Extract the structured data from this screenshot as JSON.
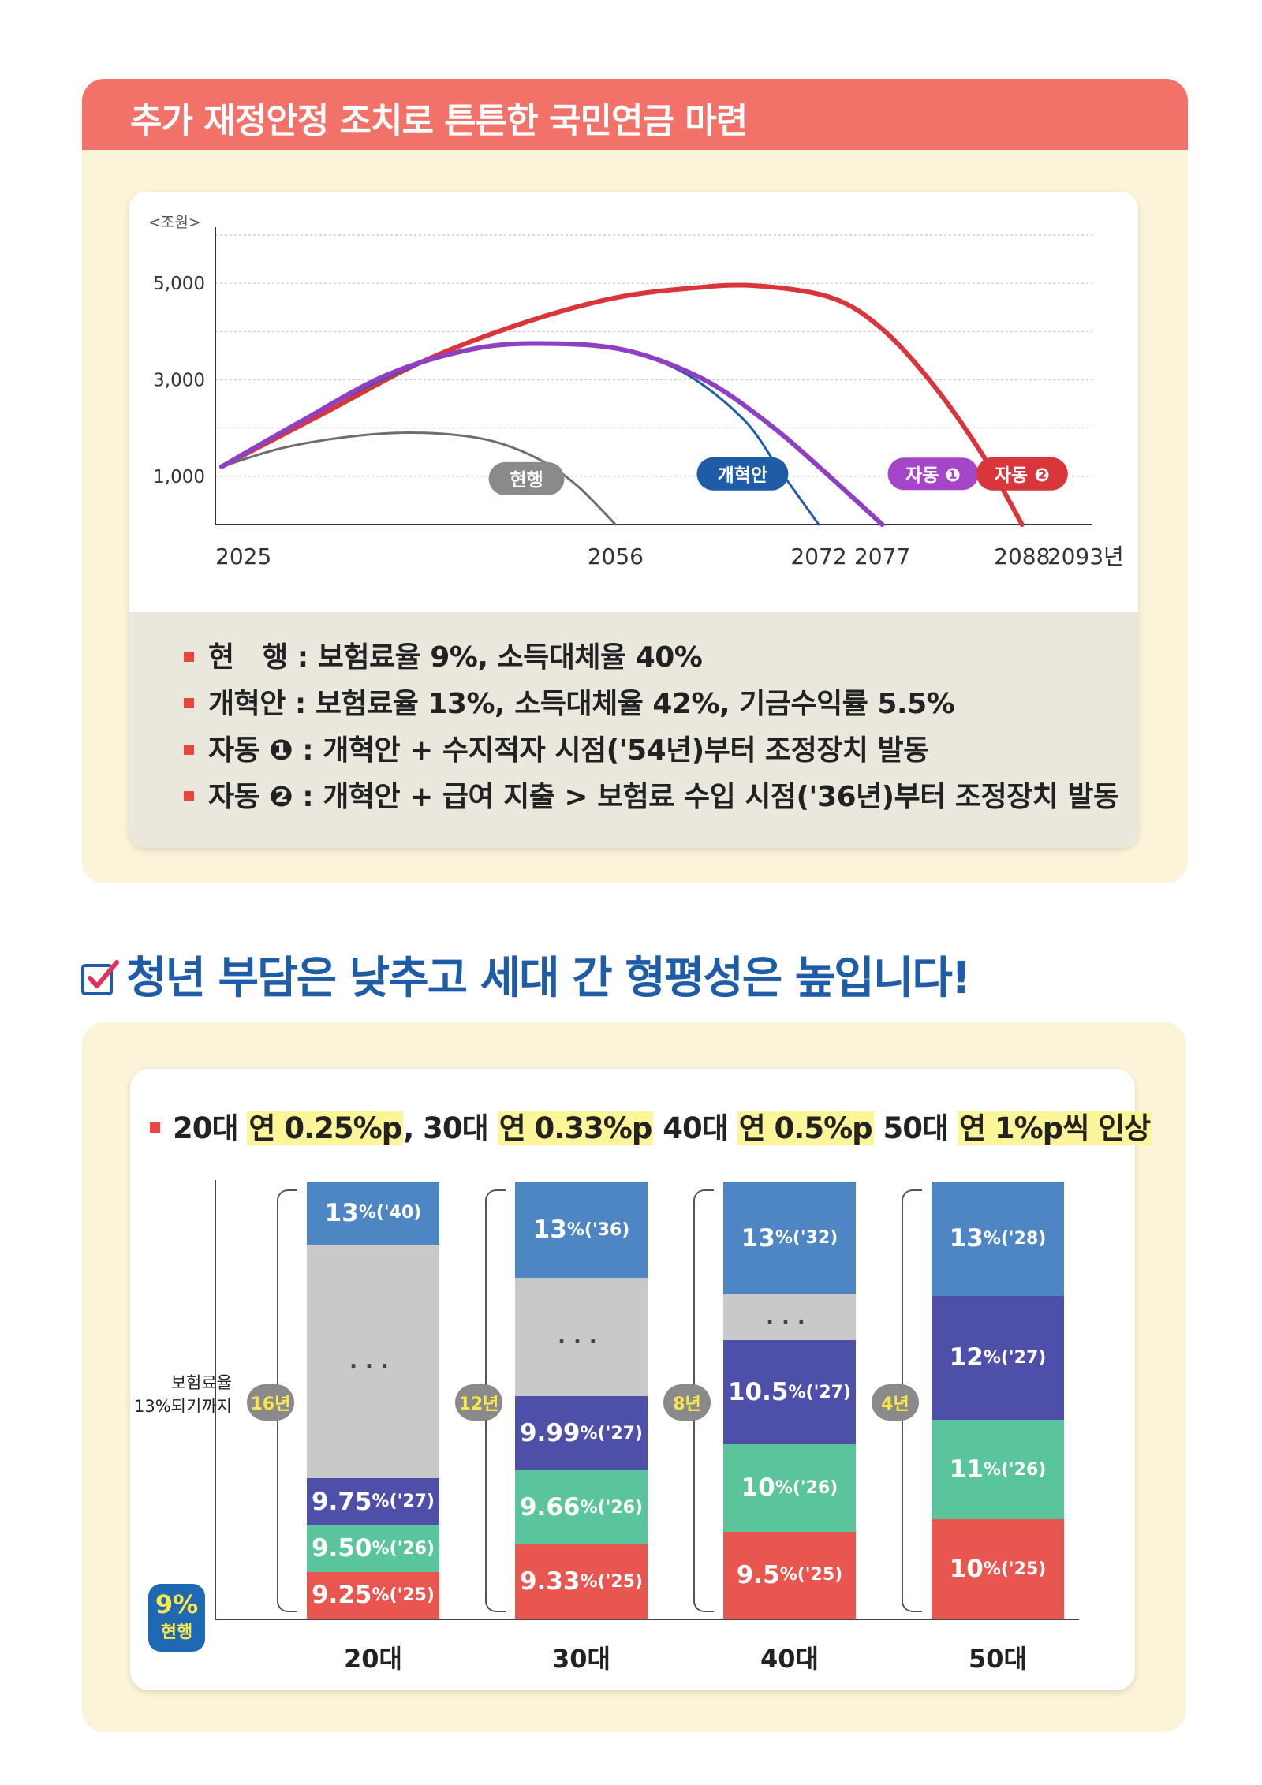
{
  "section1": {
    "title": "추가 재정안정 조치로 튼튼한 국민연금 마련"
  },
  "chart_data": [
    {
      "type": "line",
      "title": "추가 재정안정 조치로 튼튼한 국민연금 마련",
      "ylabel": "<조원>",
      "ylim": [
        0,
        6000
      ],
      "yticks": [
        1000,
        3000,
        5000
      ],
      "ytick_labels": [
        "1,000",
        "3,000",
        "5,000"
      ],
      "xlim": [
        2025,
        2093
      ],
      "xtick_values": [
        2025,
        2056,
        2072,
        2077,
        2088,
        2093
      ],
      "xtick_labels": [
        "2025",
        "2056",
        "2072",
        "2077",
        "2088",
        "2093년"
      ],
      "grid": true,
      "series": [
        {
          "name": "현행",
          "color": "#6e6e6e",
          "badge_color": "#8a8a8a",
          "label_x": 2049,
          "label_y": 950,
          "x": [
            2025,
            2030,
            2036,
            2041,
            2046,
            2050,
            2053,
            2056
          ],
          "y": [
            1200,
            1600,
            1850,
            1900,
            1750,
            1350,
            800,
            0
          ]
        },
        {
          "name": "개혁안",
          "color": "#1f5ca8",
          "badge_color": "#1f5ca8",
          "label_x": 2066,
          "label_y": 1050,
          "x": [
            2025,
            2031,
            2038,
            2044,
            2050,
            2055,
            2061,
            2066,
            2069,
            2072
          ],
          "y": [
            1200,
            2100,
            3050,
            3600,
            3750,
            3700,
            3200,
            2200,
            1100,
            0
          ]
        },
        {
          "name": "자동 ❶",
          "color": "#8e3fc2",
          "badge_color": "#a546c9",
          "label_x": 2081,
          "label_y": 1050,
          "x": [
            2025,
            2031,
            2038,
            2045,
            2051,
            2057,
            2063,
            2068,
            2072,
            2077
          ],
          "y": [
            1200,
            2100,
            3100,
            3650,
            3750,
            3600,
            3000,
            2100,
            1200,
            0
          ]
        },
        {
          "name": "자동 ❷",
          "color": "#d8363a",
          "badge_color": "#d8363a",
          "label_x": 2088,
          "label_y": 1050,
          "x": [
            2025,
            2033,
            2041,
            2049,
            2056,
            2062,
            2067,
            2073,
            2077,
            2081,
            2085,
            2088
          ],
          "y": [
            1200,
            2300,
            3400,
            4200,
            4700,
            4900,
            4950,
            4700,
            4050,
            2900,
            1400,
            0
          ]
        }
      ]
    },
    {
      "type": "bar",
      "stacked": true,
      "title": "20대 연 0.25%p, 30대 연 0.33%p 40대 연 0.5%p 50대 연 1%p씩 인상",
      "categories": [
        "20대",
        "30대",
        "40대",
        "50대"
      ],
      "baseline_label": "9%",
      "baseline_sub": "현행",
      "reach_label_line1": "보험료율",
      "reach_label_line2": "13%되기까지",
      "years_to_13": [
        "16년",
        "12년",
        "8년",
        "4년"
      ],
      "stacks": [
        {
          "category": "20대",
          "segments": [
            {
              "label": "9.25",
              "unit": "%",
              "year": "('25)",
              "color": "#e8564f",
              "weight": 1
            },
            {
              "label": "9.50",
              "unit": "%",
              "year": "('26)",
              "color": "#5ac59c",
              "weight": 1
            },
            {
              "label": "9.75",
              "unit": "%",
              "year": "('27)",
              "color": "#4e4fa8",
              "weight": 1
            },
            {
              "label": "...",
              "unit": "",
              "year": "",
              "color": "#c9c9c9",
              "weight": 5
            },
            {
              "label": "13",
              "unit": "%",
              "year": "('40)",
              "color": "#4e86c4",
              "weight": 1.35
            }
          ]
        },
        {
          "category": "30대",
          "segments": [
            {
              "label": "9.33",
              "unit": "%",
              "year": "('25)",
              "color": "#e8564f",
              "weight": 1
            },
            {
              "label": "9.66",
              "unit": "%",
              "year": "('26)",
              "color": "#5ac59c",
              "weight": 1
            },
            {
              "label": "9.99",
              "unit": "%",
              "year": "('27)",
              "color": "#4e4fa8",
              "weight": 1
            },
            {
              "label": "...",
              "unit": "",
              "year": "",
              "color": "#c9c9c9",
              "weight": 1.6
            },
            {
              "label": "13",
              "unit": "%",
              "year": "('36)",
              "color": "#4e86c4",
              "weight": 1.3
            }
          ]
        },
        {
          "category": "40대",
          "segments": [
            {
              "label": "9.5",
              "unit": "%",
              "year": "('25)",
              "color": "#e8564f",
              "weight": 1
            },
            {
              "label": "10",
              "unit": "%",
              "year": "('26)",
              "color": "#5ac59c",
              "weight": 1
            },
            {
              "label": "10.5",
              "unit": "%",
              "year": "('27)",
              "color": "#4e4fa8",
              "weight": 1.2
            },
            {
              "label": "...",
              "unit": "",
              "year": "",
              "color": "#c9c9c9",
              "weight": 0.52
            },
            {
              "label": "13",
              "unit": "%",
              "year": "('32)",
              "color": "#4e86c4",
              "weight": 1.3
            }
          ]
        },
        {
          "category": "50대",
          "segments": [
            {
              "label": "10",
              "unit": "%",
              "year": "('25)",
              "color": "#e8564f",
              "weight": 1
            },
            {
              "label": "11",
              "unit": "%",
              "year": "('26)",
              "color": "#5ac59c",
              "weight": 1
            },
            {
              "label": "12",
              "unit": "%",
              "year": "('27)",
              "color": "#4e4fa8",
              "weight": 1.25
            },
            {
              "label": "13",
              "unit": "%",
              "year": "('28)",
              "color": "#4e86c4",
              "weight": 1.15
            }
          ]
        }
      ]
    }
  ],
  "legend": [
    {
      "name": "현　행",
      "desc": ": 보험료율 9%, 소득대체율 40%"
    },
    {
      "name": "개혁안",
      "desc": ": 보험료율 13%, 소득대체율 42%, 기금수익률 5.5%"
    },
    {
      "name": "자동 ❶",
      "desc": ": 개혁안 + 수지적자 시점('54년)부터 조정장치 발동"
    },
    {
      "name": "자동 ❷",
      "desc": ": 개혁안 + 급여 지출 > 보험료 수입 시점('36년)부터 조정장치 발동"
    }
  ],
  "section2": {
    "title": "청년 부담은 낮추고 세대 간 형평성은 높입니다!",
    "subheading_parts": [
      {
        "text": "20대 ",
        "hl": false
      },
      {
        "text": "연 0.25%p",
        "hl": true
      },
      {
        "text": ", 30대 ",
        "hl": false
      },
      {
        "text": "연 0.33%p",
        "hl": true
      },
      {
        "text": " 40대 ",
        "hl": false
      },
      {
        "text": "연 0.5%p",
        "hl": true
      },
      {
        "text": " 50대 ",
        "hl": false
      },
      {
        "text": "연 1%p씩 인상",
        "hl": true
      }
    ]
  },
  "colors": {
    "accent_red": "#f27168",
    "cream": "#fbf4d8",
    "blue": "#1f5ca8"
  },
  "icons": [
    "checkbox-check-icon",
    "square-bullet-icon"
  ]
}
